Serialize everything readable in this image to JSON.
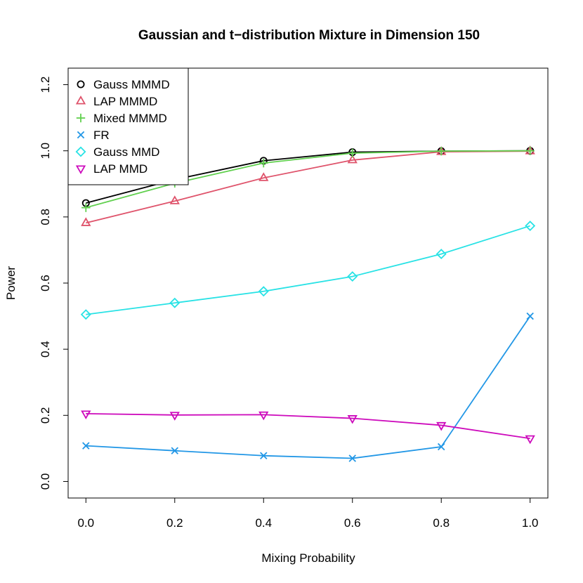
{
  "chart_data": {
    "type": "line",
    "title": "Gaussian and t−distribution Mixture in Dimension 150",
    "xlabel": "Mixing Probability",
    "ylabel": "Power",
    "x": [
      0.0,
      0.2,
      0.4,
      0.6,
      0.8,
      1.0
    ],
    "xticks": [
      "0.0",
      "0.2",
      "0.4",
      "0.6",
      "0.8",
      "1.0"
    ],
    "yticks": [
      "0.0",
      "0.2",
      "0.4",
      "0.6",
      "0.8",
      "1.0",
      "1.2"
    ],
    "xlim": [
      -0.04,
      1.04
    ],
    "ylim": [
      -0.05,
      1.25
    ],
    "grid": false,
    "legend_position": "top-left",
    "series": [
      {
        "name": "Gauss MMMD",
        "color": "#000000",
        "marker": "circle",
        "values": [
          0.842,
          0.913,
          0.97,
          0.996,
          0.999,
          1.0
        ]
      },
      {
        "name": "LAP MMMD",
        "color": "#DF536B",
        "marker": "triangle-up",
        "values": [
          0.782,
          0.848,
          0.918,
          0.972,
          0.997,
          0.999
        ]
      },
      {
        "name": "Mixed MMMD",
        "color": "#61D04F",
        "marker": "plus",
        "values": [
          0.828,
          0.902,
          0.963,
          0.993,
          0.999,
          1.0
        ]
      },
      {
        "name": "FR",
        "color": "#2297E6",
        "marker": "cross",
        "values": [
          0.108,
          0.093,
          0.078,
          0.07,
          0.105,
          0.5
        ]
      },
      {
        "name": "Gauss MMD",
        "color": "#28E2E5",
        "marker": "diamond",
        "values": [
          0.505,
          0.54,
          0.575,
          0.62,
          0.688,
          0.773
        ]
      },
      {
        "name": "LAP MMD",
        "color": "#CD0BBC",
        "marker": "triangle-down",
        "values": [
          0.205,
          0.201,
          0.202,
          0.191,
          0.17,
          0.13
        ]
      }
    ]
  }
}
